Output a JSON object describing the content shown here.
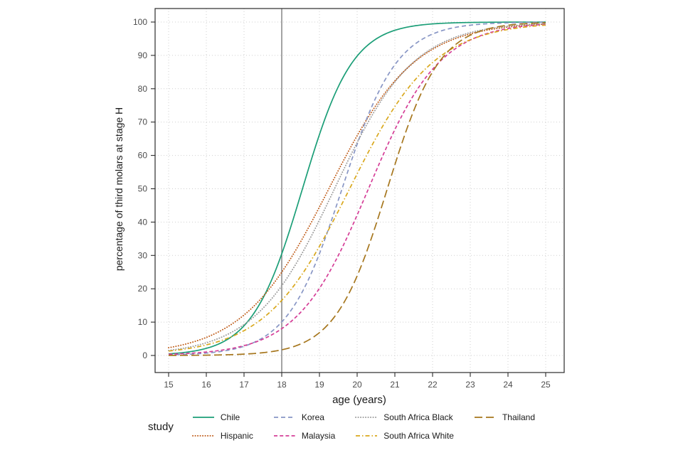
{
  "chart_data": {
    "type": "line",
    "title": "",
    "xlabel": "age (years)",
    "ylabel": "percentage of third molars at stage H",
    "xlim": [
      15,
      25
    ],
    "ylim": [
      0,
      100
    ],
    "x_ticks": [
      15,
      16,
      17,
      18,
      19,
      20,
      21,
      22,
      23,
      24,
      25
    ],
    "y_ticks": [
      0,
      10,
      20,
      30,
      40,
      50,
      60,
      70,
      80,
      90,
      100
    ],
    "grid": "dotted major gridlines, white panel, black border",
    "reference_line_x": 18,
    "legend_title": "study",
    "legend_position": "bottom",
    "curve_model": "logistic: percent = 100 / (1 + exp(-slope * (age - midpoint)))",
    "ages": [
      15,
      16,
      17,
      18,
      19,
      20,
      21,
      22,
      23,
      24,
      25
    ],
    "series": [
      {
        "name": "Chile",
        "color": "#1b9e77",
        "linetype": "solid",
        "midpoint": 18.55,
        "slope": 1.5,
        "values": [
          0.5,
          2.1,
          8.9,
          30.5,
          66.3,
          89.8,
          97.5,
          99.4,
          99.9,
          100.0,
          100.0
        ]
      },
      {
        "name": "Hispanic",
        "color": "#bf5b17",
        "linetype": "dotted",
        "midpoint": 19.25,
        "slope": 0.88,
        "values": [
          2.3,
          5.4,
          12.1,
          25.0,
          44.5,
          65.9,
          82.4,
          91.8,
          96.4,
          98.5,
          99.4
        ]
      },
      {
        "name": "Korea",
        "color": "#8896c5",
        "linetype": "dashed",
        "midpoint": 19.6,
        "slope": 1.37,
        "values": [
          0.2,
          0.7,
          2.8,
          10.1,
          30.5,
          63.4,
          87.2,
          96.4,
          99.1,
          99.8,
          99.9
        ]
      },
      {
        "name": "Malaysia",
        "color": "#d53e97",
        "linetype": "dashed-short",
        "midpoint": 20.3,
        "slope": 1.06,
        "values": [
          0.4,
          1.0,
          2.9,
          8.0,
          20.1,
          42.1,
          67.7,
          85.8,
          94.6,
          98.1,
          99.3
        ]
      },
      {
        "name": "South Africa Black",
        "color": "#9a9a9a",
        "linetype": "dotted",
        "midpoint": 19.4,
        "slope": 0.95,
        "values": [
          1.5,
          3.8,
          9.3,
          20.9,
          40.6,
          63.9,
          82.1,
          92.2,
          96.8,
          98.8,
          99.5
        ]
      },
      {
        "name": "South Africa White",
        "color": "#d9a81d",
        "linetype": "dotdash",
        "midpoint": 19.8,
        "slope": 0.9,
        "values": [
          1.3,
          3.2,
          7.4,
          16.5,
          32.7,
          54.5,
          74.6,
          87.9,
          94.7,
          97.8,
          99.1
        ]
      },
      {
        "name": "Thailand",
        "color": "#a6761d",
        "linetype": "longdash",
        "midpoint": 20.8,
        "slope": 1.45,
        "values": [
          0.0,
          0.1,
          0.4,
          1.7,
          6.8,
          23.9,
          57.2,
          85.1,
          96.0,
          99.0,
          99.8
        ]
      }
    ]
  }
}
